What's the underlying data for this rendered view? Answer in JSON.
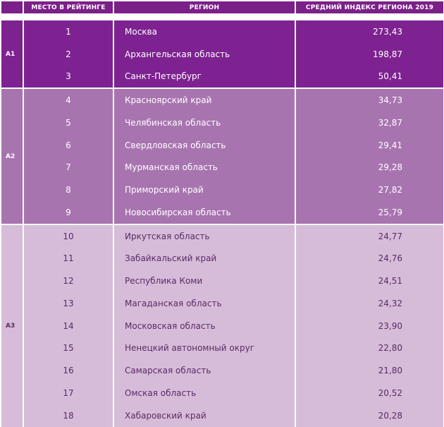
{
  "headers": {
    "col_group": "",
    "col_rank": "МЕСТО В РЕЙТИНГЕ",
    "col_region": "РЕГИОН",
    "col_index": "СРЕДНИЙ ИНДЕКС РЕГИОНА 2019"
  },
  "groups": [
    {
      "label": "A1",
      "rows": [
        {
          "rank": "1",
          "region": "Москва",
          "index": "273,43"
        },
        {
          "rank": "2",
          "region": "Архангельская область",
          "index": "198,87"
        },
        {
          "rank": "3",
          "region": "Санкт-Петербург",
          "index": "50,41"
        }
      ]
    },
    {
      "label": "A2",
      "rows": [
        {
          "rank": "4",
          "region": "Красноярский край",
          "index": "34,73"
        },
        {
          "rank": "5",
          "region": "Челябинская область",
          "index": "32,87"
        },
        {
          "rank": "6",
          "region": "Свердловская область",
          "index": "29,41"
        },
        {
          "rank": "7",
          "region": "Мурманская область",
          "index": "29,28"
        },
        {
          "rank": "8",
          "region": "Приморский край",
          "index": "27,82"
        },
        {
          "rank": "9",
          "region": "Новосибирская область",
          "index": "25,79"
        }
      ]
    },
    {
      "label": "A3",
      "rows": [
        {
          "rank": "10",
          "region": "Иркутская область",
          "index": "24,77"
        },
        {
          "rank": "11",
          "region": "Забайкальский край",
          "index": "24,76"
        },
        {
          "rank": "12",
          "region": "Республика Коми",
          "index": "24,51"
        },
        {
          "rank": "13",
          "region": "Магаданская область",
          "index": "24,32"
        },
        {
          "rank": "14",
          "region": "Московская область",
          "index": "23,90"
        },
        {
          "rank": "15",
          "region": "Ненецкий автономный округ",
          "index": "22,80"
        },
        {
          "rank": "16",
          "region": "Самарская область",
          "index": "21,80"
        },
        {
          "rank": "17",
          "region": "Омская область",
          "index": "20,52"
        },
        {
          "rank": "18",
          "region": "Хабаровский край",
          "index": "20,28"
        }
      ]
    }
  ],
  "colors": {
    "header": "#7b2088",
    "group_a1": "#7d2290",
    "group_a2": "#a874b0",
    "group_a3": "#d6bcd9"
  }
}
